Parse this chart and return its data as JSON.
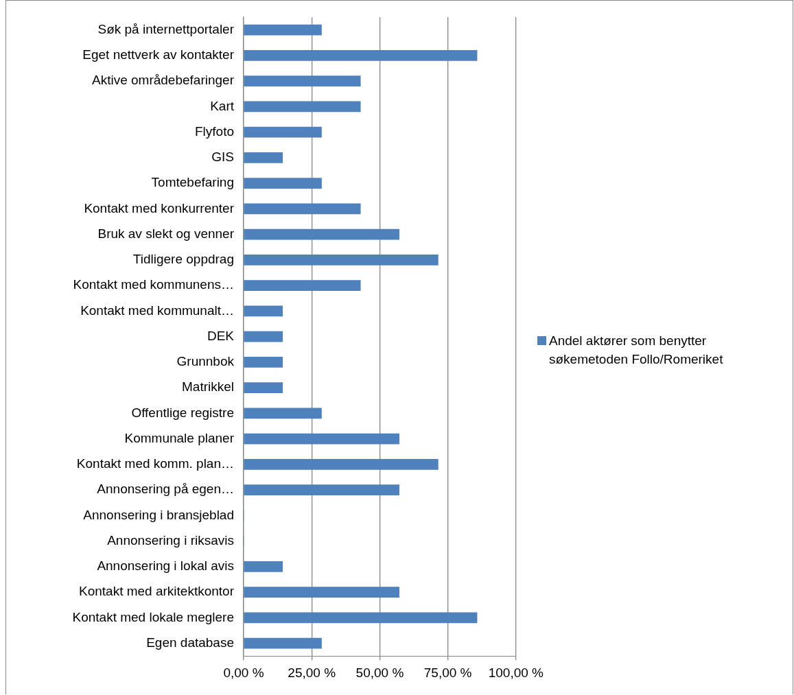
{
  "chart_data": {
    "type": "bar",
    "orientation": "horizontal",
    "categories": [
      "Søk på internettportaler",
      "Eget nettverk av kontakter",
      "Aktive områdebefaringer",
      "Kart",
      "Flyfoto",
      "GIS",
      "Tomtebefaring",
      "Kontakt med konkurrenter",
      "Bruk av slekt og venner",
      "Tidligere oppdrag",
      "Kontakt med kommunens…",
      "Kontakt med kommunalt…",
      "DEK",
      "Grunnbok",
      "Matrikkel",
      "Offentlige registre",
      "Kommunale planer",
      "Kontakt med komm. plan…",
      "Annonsering på egen…",
      "Annonsering i bransjeblad",
      "Annonsering i riksavis",
      "Annonsering i lokal avis",
      "Kontakt med arkitektkontor",
      "Kontakt med lokale meglere",
      "Egen database"
    ],
    "series": [
      {
        "name": "Andel aktører som benytter søkemetoden Follo/Romeriket",
        "color": "#4f81bd",
        "values": [
          28.6,
          85.7,
          42.9,
          42.9,
          28.6,
          14.3,
          28.6,
          42.9,
          57.1,
          71.4,
          42.9,
          14.3,
          14.3,
          14.3,
          14.3,
          28.6,
          57.1,
          71.4,
          57.1,
          0,
          0,
          14.3,
          57.1,
          85.7,
          28.6
        ]
      }
    ],
    "xlim": [
      0,
      100
    ],
    "xticks": [
      {
        "value": 0,
        "label": "0,00 %"
      },
      {
        "value": 25,
        "label": "25,00 %"
      },
      {
        "value": 50,
        "label": "50,00 %"
      },
      {
        "value": 75,
        "label": "75,00 %"
      },
      {
        "value": 100,
        "label": "100,00 %"
      }
    ],
    "grid": "x",
    "legend": "right"
  }
}
